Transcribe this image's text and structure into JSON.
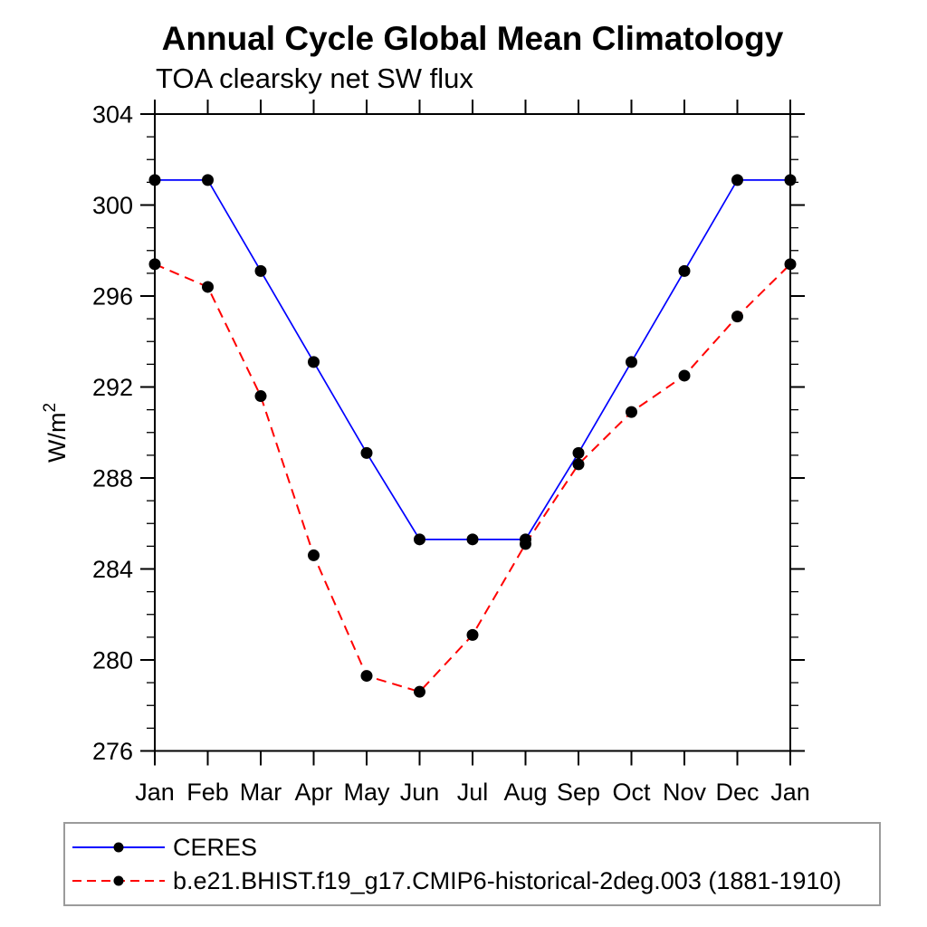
{
  "title": "Annual Cycle Global Mean Climatology",
  "subtitle": "TOA clearsky net SW flux",
  "chart_data": {
    "type": "line",
    "title": "Annual Cycle Global Mean Climatology",
    "subtitle": "TOA clearsky net SW flux",
    "xlabel": "",
    "ylabel": "W/m²",
    "categories": [
      "Jan",
      "Feb",
      "Mar",
      "Apr",
      "May",
      "Jun",
      "Jul",
      "Aug",
      "Sep",
      "Oct",
      "Nov",
      "Dec",
      "Jan"
    ],
    "series": [
      {
        "name": "CERES",
        "color": "#0000ff",
        "line_style": "solid",
        "marker": "filled-circle",
        "marker_color": "#000000",
        "values": [
          301.1,
          301.1,
          297.1,
          293.1,
          289.1,
          285.3,
          285.3,
          285.3,
          289.1,
          293.1,
          297.1,
          301.1,
          301.1
        ]
      },
      {
        "name": "b.e21.BHIST.f19_g17.CMIP6-historical-2deg.003 (1881-1910)",
        "color": "#ff0000",
        "line_style": "dashed",
        "marker": "filled-circle",
        "marker_color": "#000000",
        "values": [
          297.4,
          296.4,
          291.6,
          284.6,
          279.3,
          278.6,
          281.1,
          285.1,
          288.6,
          290.9,
          292.5,
          295.1,
          297.4
        ]
      }
    ],
    "ylim": [
      276,
      304
    ],
    "ytick_major_step": 4,
    "ytick_minor_step": 1,
    "ytick_labels": [
      276,
      280,
      284,
      288,
      292,
      296,
      300,
      304
    ],
    "grid": false,
    "frame": "box-with-outward-ticks",
    "legend_position": "bottom-left-box"
  }
}
